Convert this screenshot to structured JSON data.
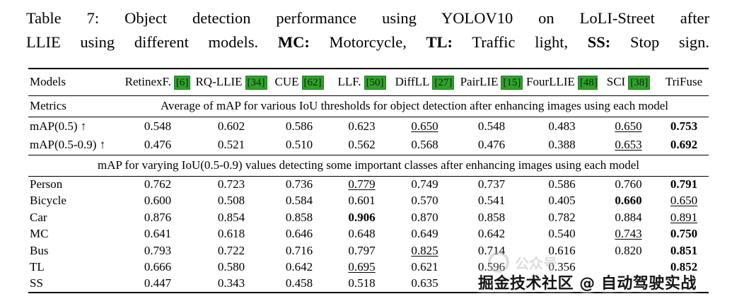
{
  "caption": {
    "line1_label": "Table 7:",
    "line1_rest": "Object detection performance using YOLOV10 on LoLI-Street after",
    "line2_start": "LLIE using different models.",
    "mc_term": "MC:",
    "mc_def": "Motorcycle,",
    "tl_term": "TL:",
    "tl_def": "Traffic light,",
    "ss_term": "SS:",
    "ss_def": "Stop sign."
  },
  "table": {
    "models_label": "Models",
    "columns": [
      {
        "name": "RetinexF.",
        "cite": "[6]"
      },
      {
        "name": "RQ-LLIE",
        "cite": "[34]"
      },
      {
        "name": "CUE",
        "cite": "[62]"
      },
      {
        "name": "LLF.",
        "cite": "[50]"
      },
      {
        "name": "DiffLL",
        "cite": "[27]"
      },
      {
        "name": "PairLIE",
        "cite": "[15]"
      },
      {
        "name": "FourLLIE",
        "cite": "[48]"
      },
      {
        "name": "SCI",
        "cite": "[38]"
      },
      {
        "name": "TriFuse",
        "cite": ""
      }
    ],
    "metrics_label": "Metrics",
    "metrics_desc": "Average of mAP for various IoU thresholds for object detection after enhancing images using each model",
    "map_rows": [
      {
        "label": "mAP(0.5) ↑",
        "values": [
          "0.548",
          "0.602",
          "0.586",
          "0.623",
          "0.650",
          "0.548",
          "0.483",
          "0.650",
          "0.753"
        ],
        "bold": [
          8
        ],
        "underline": [
          4,
          7
        ]
      },
      {
        "label": "mAP(0.5-0.9) ↑",
        "values": [
          "0.476",
          "0.521",
          "0.510",
          "0.562",
          "0.568",
          "0.476",
          "0.388",
          "0.653",
          "0.692"
        ],
        "bold": [
          8
        ],
        "underline": [
          7
        ]
      }
    ],
    "classes_header": "mAP for varying IoU(0.5-0.9) values detecting some important classes after enhancing images using each model",
    "class_rows": [
      {
        "label": "Person",
        "values": [
          "0.762",
          "0.723",
          "0.736",
          "0.779",
          "0.749",
          "0.737",
          "0.586",
          "0.760",
          "0.791"
        ],
        "bold": [
          8
        ],
        "underline": [
          3
        ]
      },
      {
        "label": "Bicycle",
        "values": [
          "0.600",
          "0.508",
          "0.584",
          "0.601",
          "0.570",
          "0.541",
          "0.405",
          "0.660",
          "0.650"
        ],
        "bold": [
          7
        ],
        "underline": [
          8
        ]
      },
      {
        "label": "Car",
        "values": [
          "0.876",
          "0.854",
          "0.858",
          "0.906",
          "0.870",
          "0.858",
          "0.782",
          "0.884",
          "0.891"
        ],
        "bold": [
          3
        ],
        "underline": [
          8
        ]
      },
      {
        "label": "MC",
        "values": [
          "0.641",
          "0.618",
          "0.646",
          "0.648",
          "0.649",
          "0.642",
          "0.540",
          "0.743",
          "0.750"
        ],
        "bold": [
          8
        ],
        "underline": [
          7
        ]
      },
      {
        "label": "Bus",
        "values": [
          "0.793",
          "0.722",
          "0.716",
          "0.797",
          "0.825",
          "0.714",
          "0.616",
          "0.820",
          "0.851"
        ],
        "bold": [
          8
        ],
        "underline": [
          4
        ]
      },
      {
        "label": "TL",
        "values": [
          "0.666",
          "0.580",
          "0.642",
          "0.695",
          "0.621",
          "0.596",
          "0.356",
          "",
          "0.852"
        ],
        "bold": [
          8
        ],
        "underline": [
          3
        ]
      },
      {
        "label": "SS",
        "values": [
          "0.447",
          "0.343",
          "0.458",
          "0.518",
          "0.635",
          "",
          "",
          "",
          ""
        ],
        "bold": [],
        "underline": []
      }
    ]
  },
  "watermark": {
    "faint_text": "公众号",
    "dark_text": "掘金技术社区 @ 自动驾驶实战"
  },
  "colors": {
    "citation_green": "#33a02c"
  }
}
